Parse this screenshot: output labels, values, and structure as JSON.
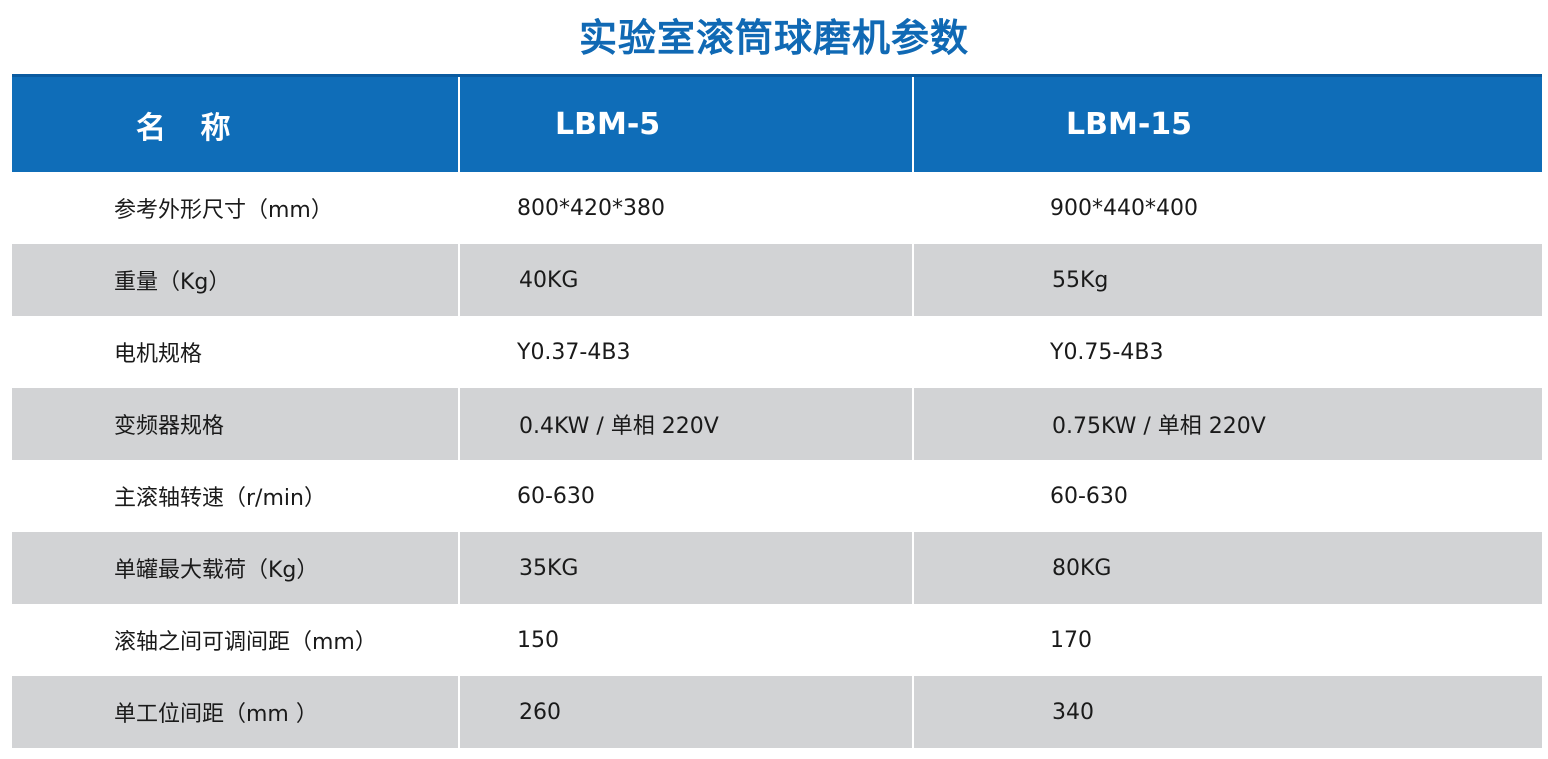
{
  "title": "实验室滚筒球磨机参数",
  "table": {
    "headers": [
      "名 称",
      "LBM-5",
      "LBM-15"
    ],
    "rows": [
      [
        "参考外形尺寸（mm）",
        "800*420*380",
        "900*440*400"
      ],
      [
        "重量（Kg）",
        "40KG",
        "55Kg"
      ],
      [
        "电机规格",
        "Y0.37-4B3",
        "Y0.75-4B3"
      ],
      [
        "变频器规格",
        "0.4KW / 单相 220V",
        "0.75KW / 单相 220V"
      ],
      [
        "主滚轴转速（r/min）",
        "60-630",
        "60-630"
      ],
      [
        "单罐最大载荷（Kg）",
        "35KG",
        "80KG"
      ],
      [
        "滚轴之间可调间距（mm）",
        "150",
        "170"
      ],
      [
        "单工位间距（mm ）",
        "260",
        "340"
      ]
    ]
  },
  "colors": {
    "title": "#1069b4",
    "header_bg": "#0f6db8",
    "shade_row_bg": "#d2d3d5"
  }
}
